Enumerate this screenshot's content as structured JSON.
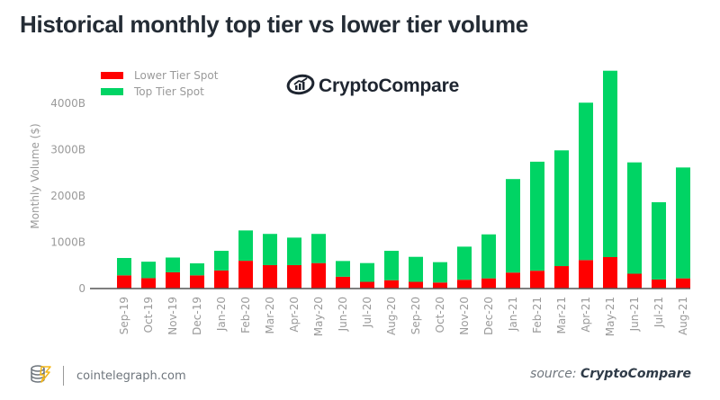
{
  "header": {
    "title": "Historical monthly top tier vs lower tier volume"
  },
  "brand": {
    "name": "CryptoCompare",
    "icon": "chart-growth-icon"
  },
  "footer": {
    "logo_icon": "cointelegraph-coin-icon",
    "site": "cointelegraph.com",
    "source_label": "source:",
    "source_name": "CryptoCompare"
  },
  "colors": {
    "lower": "#ff0000",
    "top": "#00d464",
    "axis": "#555555",
    "tick_text": "#9a9a9a"
  },
  "chart_data": {
    "type": "bar",
    "stacked": true,
    "title": "Historical monthly top tier vs lower tier volume",
    "xlabel": "",
    "ylabel": "Monthly Volume ($)",
    "ylim": [
      0,
      4750
    ],
    "yticks": [
      0,
      1000,
      2000,
      3000,
      4000
    ],
    "ytick_labels": [
      "0",
      "1000B",
      "2000B",
      "3000B",
      "4000B"
    ],
    "grid": false,
    "legend_position": "top-left",
    "categories": [
      "Sep-19",
      "Oct-19",
      "Nov-19",
      "Dec-19",
      "Jan-20",
      "Feb-20",
      "Mar-20",
      "Apr-20",
      "May-20",
      "Jun-20",
      "Jul-20",
      "Aug-20",
      "Sep-20",
      "Oct-20",
      "Nov-20",
      "Dec-20",
      "Jan-21",
      "Feb-21",
      "Mar-21",
      "Apr-21",
      "May-21",
      "Jun-21",
      "Jul-21",
      "Aug-21"
    ],
    "series": [
      {
        "name": "Lower Tier Spot",
        "color": "#ff0000",
        "values": [
          285,
          225,
          350,
          285,
          390,
          600,
          505,
          505,
          550,
          255,
          145,
          180,
          145,
          130,
          190,
          220,
          345,
          385,
          485,
          615,
          680,
          320,
          195,
          220
        ]
      },
      {
        "name": "Top Tier Spot",
        "color": "#00d464",
        "values": [
          375,
          355,
          320,
          260,
          425,
          655,
          675,
          595,
          630,
          340,
          405,
          635,
          540,
          440,
          715,
          950,
          2020,
          2355,
          2500,
          3400,
          4025,
          2405,
          1670,
          2395
        ]
      }
    ]
  }
}
